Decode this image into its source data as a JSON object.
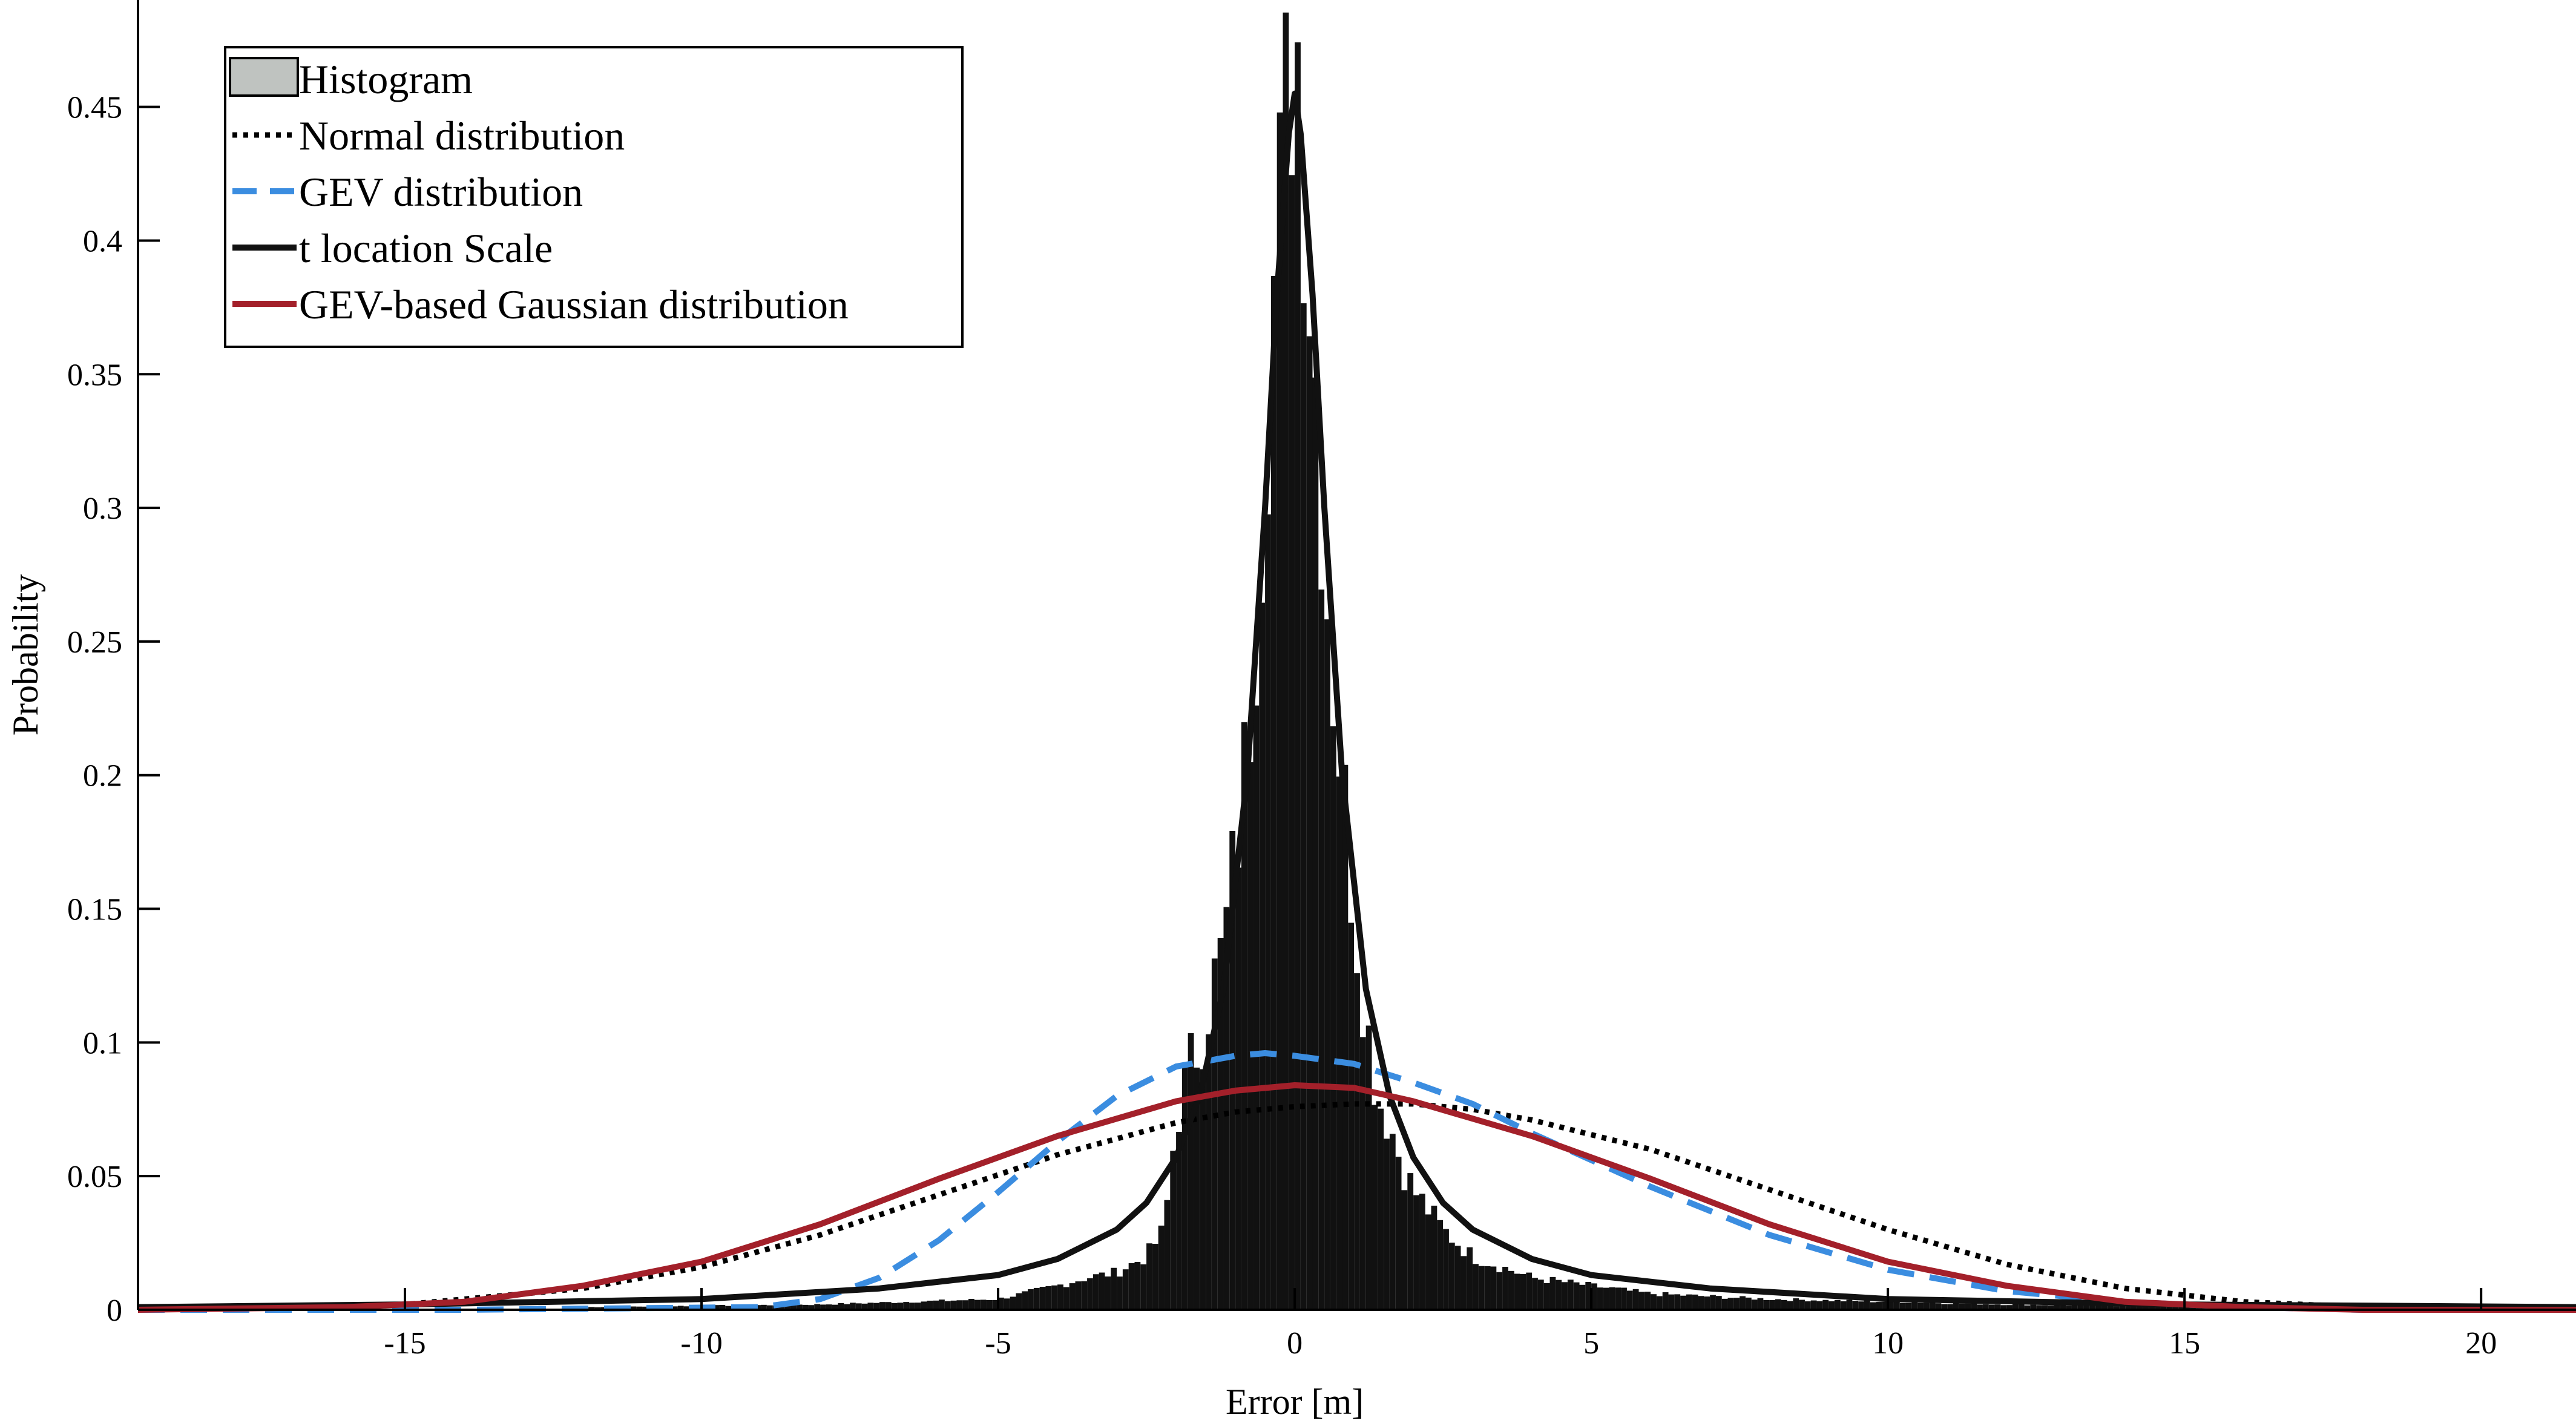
{
  "chart_data": {
    "type": "bar",
    "title": "",
    "xlabel": "Error [m]",
    "ylabel": "Probability",
    "xlim": [
      -19.5,
      21.6
    ],
    "ylim": [
      0,
      0.49
    ],
    "x_ticks": [
      -15,
      -10,
      -5,
      0,
      5,
      10,
      15,
      20
    ],
    "x_tick_labels": [
      "-15",
      "-10",
      "-5",
      "0",
      "5",
      "10",
      "15",
      "20"
    ],
    "y_ticks": [
      0,
      0.05,
      0.1,
      0.15,
      0.2,
      0.25,
      0.3,
      0.35,
      0.4,
      0.45
    ],
    "y_tick_labels": [
      "0",
      "0.05",
      "0.1",
      "0.15",
      "0.2",
      "0.25",
      "0.3",
      "0.35",
      "0.4",
      "0.45"
    ],
    "grid": false,
    "legend_position": "top-left",
    "histogram": {
      "name": "Histogram",
      "color": "#111111",
      "legend_color": "#bfc3c0",
      "bin_width": 0.1,
      "points": [
        [
          -12.0,
          0.001
        ],
        [
          -8.0,
          0.002
        ],
        [
          -5.0,
          0.004
        ],
        [
          -4.0,
          0.009
        ],
        [
          -3.5,
          0.012
        ],
        [
          -3.0,
          0.014
        ],
        [
          -2.5,
          0.02
        ],
        [
          -2.2,
          0.03
        ],
        [
          -2.0,
          0.07
        ],
        [
          -1.8,
          0.09
        ],
        [
          -1.6,
          0.1
        ],
        [
          -1.4,
          0.12
        ],
        [
          -1.2,
          0.135
        ],
        [
          -1.0,
          0.17
        ],
        [
          -0.8,
          0.21
        ],
        [
          -0.6,
          0.28
        ],
        [
          -0.4,
          0.37
        ],
        [
          -0.2,
          0.42
        ],
        [
          -0.1,
          0.46
        ],
        [
          0.0,
          0.49
        ],
        [
          0.1,
          0.46
        ],
        [
          0.2,
          0.41
        ],
        [
          0.4,
          0.33
        ],
        [
          0.6,
          0.25
        ],
        [
          0.8,
          0.2
        ],
        [
          1.0,
          0.15
        ],
        [
          1.2,
          0.11
        ],
        [
          1.4,
          0.08
        ],
        [
          1.6,
          0.07
        ],
        [
          1.8,
          0.055
        ],
        [
          2.0,
          0.045
        ],
        [
          2.5,
          0.03
        ],
        [
          3.0,
          0.02
        ],
        [
          4.0,
          0.012
        ],
        [
          5.0,
          0.009
        ],
        [
          6.0,
          0.006
        ],
        [
          8.0,
          0.004
        ],
        [
          10.0,
          0.003
        ],
        [
          12.0,
          0.002
        ],
        [
          14.0,
          0.0015
        ],
        [
          16.0,
          0.001
        ],
        [
          18.0,
          0.001
        ],
        [
          20.0,
          0.001
        ],
        [
          21.0,
          0.001
        ]
      ]
    },
    "series": [
      {
        "name": "Normal distribution",
        "color": "#000000",
        "style": "dotted",
        "x": [
          -19.5,
          -15,
          -12,
          -10,
          -8,
          -6,
          -4,
          -2,
          -1,
          0,
          1,
          2,
          3,
          4,
          6,
          8,
          10,
          12,
          14,
          16,
          18,
          21.6
        ],
        "y": [
          0,
          0.002,
          0.008,
          0.016,
          0.028,
          0.043,
          0.058,
          0.07,
          0.074,
          0.076,
          0.077,
          0.077,
          0.075,
          0.071,
          0.06,
          0.045,
          0.03,
          0.017,
          0.008,
          0.003,
          0.001,
          0
        ]
      },
      {
        "name": "GEV distribution",
        "color": "#3b8de0",
        "style": "dashed",
        "x": [
          -19.5,
          -14,
          -9,
          -8,
          -7,
          -6,
          -5,
          -4,
          -3,
          -2,
          -1,
          -0.5,
          0,
          1,
          2,
          3,
          4,
          6,
          8,
          10,
          12,
          14,
          16,
          18,
          21.6
        ],
        "y": [
          0,
          0,
          0.001,
          0.004,
          0.012,
          0.026,
          0.044,
          0.063,
          0.08,
          0.091,
          0.095,
          0.096,
          0.095,
          0.092,
          0.085,
          0.077,
          0.066,
          0.046,
          0.028,
          0.015,
          0.007,
          0.003,
          0.001,
          0,
          0
        ]
      },
      {
        "name": "t location Scale",
        "color": "#111111",
        "style": "solid",
        "x": [
          -19.5,
          -15,
          -10,
          -7,
          -5,
          -4,
          -3,
          -2.5,
          -2,
          -1.6,
          -1.2,
          -0.8,
          -0.5,
          -0.3,
          -0.1,
          0.0,
          0.1,
          0.3,
          0.5,
          0.8,
          1.2,
          1.6,
          2,
          2.5,
          3,
          4,
          5,
          7,
          10,
          15,
          21.6
        ],
        "y": [
          0.001,
          0.002,
          0.004,
          0.008,
          0.013,
          0.019,
          0.03,
          0.04,
          0.057,
          0.08,
          0.12,
          0.2,
          0.3,
          0.38,
          0.44,
          0.455,
          0.44,
          0.38,
          0.3,
          0.2,
          0.12,
          0.08,
          0.057,
          0.04,
          0.03,
          0.019,
          0.013,
          0.008,
          0.004,
          0.002,
          0.001
        ]
      },
      {
        "name": "GEV-based Gaussian distribution",
        "color": "#a3202a",
        "style": "solid",
        "x": [
          -19.5,
          -16,
          -14,
          -12,
          -10,
          -8,
          -6,
          -4,
          -2,
          -1,
          0,
          1,
          2,
          4,
          6,
          8,
          10,
          12,
          14,
          16,
          18,
          21.6
        ],
        "y": [
          0,
          0.001,
          0.003,
          0.009,
          0.018,
          0.032,
          0.049,
          0.065,
          0.078,
          0.082,
          0.084,
          0.083,
          0.078,
          0.065,
          0.049,
          0.032,
          0.018,
          0.009,
          0.003,
          0.001,
          0,
          0
        ]
      }
    ]
  }
}
